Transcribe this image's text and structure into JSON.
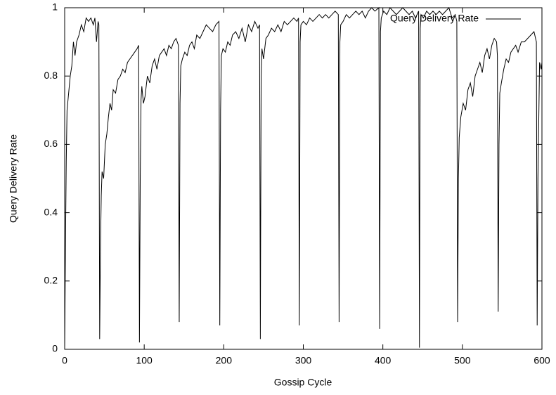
{
  "chart_data": {
    "type": "line",
    "xlabel": "Gossip Cycle",
    "ylabel": "Query Delivery Rate",
    "x": [
      0,
      1,
      2,
      3,
      5,
      7,
      9,
      11,
      13,
      15,
      18,
      21,
      24,
      27,
      30,
      33,
      36,
      38,
      40,
      42,
      43,
      44,
      45,
      46,
      47,
      49,
      51,
      53,
      55,
      57,
      59,
      61,
      64,
      67,
      70,
      73,
      76,
      79,
      82,
      85,
      88,
      91,
      93,
      94,
      95,
      96,
      97,
      99,
      101,
      104,
      107,
      110,
      113,
      116,
      119,
      122,
      125,
      128,
      131,
      134,
      137,
      140,
      143,
      144,
      145,
      146,
      148,
      151,
      154,
      157,
      160,
      163,
      166,
      170,
      174,
      178,
      182,
      186,
      190,
      194,
      195,
      196,
      197,
      199,
      202,
      205,
      208,
      211,
      215,
      219,
      223,
      227,
      231,
      235,
      239,
      243,
      245,
      246,
      247,
      248,
      250,
      253,
      256,
      260,
      264,
      268,
      272,
      276,
      280,
      284,
      288,
      292,
      294,
      295,
      296,
      297,
      300,
      304,
      308,
      312,
      316,
      320,
      324,
      328,
      332,
      336,
      340,
      344,
      345,
      346,
      347,
      350,
      354,
      358,
      362,
      366,
      370,
      374,
      378,
      382,
      386,
      390,
      395,
      396,
      397,
      398,
      401,
      405,
      409,
      413,
      417,
      421,
      425,
      429,
      433,
      437,
      441,
      445,
      446,
      447,
      448,
      451,
      455,
      459,
      463,
      467,
      471,
      475,
      479,
      483,
      487,
      491,
      493,
      494,
      495,
      496,
      498,
      501,
      504,
      507,
      510,
      513,
      516,
      519,
      522,
      525,
      528,
      531,
      534,
      537,
      540,
      543,
      544,
      545,
      546,
      547,
      549,
      552,
      555,
      558,
      561,
      564,
      567,
      570,
      574,
      578,
      582,
      586,
      590,
      593,
      594,
      595,
      597,
      599,
      600
    ],
    "series": [
      {
        "name": "Query Delivery Rate",
        "color": "#000000",
        "values": [
          0,
          0.3,
          0.55,
          0.7,
          0.75,
          0.8,
          0.83,
          0.9,
          0.86,
          0.9,
          0.92,
          0.95,
          0.93,
          0.97,
          0.96,
          0.97,
          0.95,
          0.97,
          0.9,
          0.96,
          0.95,
          0.03,
          0.3,
          0.45,
          0.52,
          0.5,
          0.6,
          0.63,
          0.68,
          0.72,
          0.7,
          0.76,
          0.75,
          0.79,
          0.8,
          0.82,
          0.81,
          0.84,
          0.85,
          0.86,
          0.87,
          0.88,
          0.89,
          0.02,
          0.5,
          0.73,
          0.77,
          0.72,
          0.74,
          0.8,
          0.78,
          0.83,
          0.85,
          0.82,
          0.86,
          0.87,
          0.88,
          0.86,
          0.89,
          0.88,
          0.9,
          0.91,
          0.89,
          0.08,
          0.72,
          0.83,
          0.85,
          0.87,
          0.86,
          0.89,
          0.9,
          0.88,
          0.92,
          0.91,
          0.93,
          0.95,
          0.94,
          0.93,
          0.95,
          0.96,
          0.07,
          0.7,
          0.86,
          0.88,
          0.87,
          0.9,
          0.89,
          0.92,
          0.93,
          0.91,
          0.94,
          0.9,
          0.95,
          0.93,
          0.96,
          0.94,
          0.95,
          0.03,
          0.8,
          0.88,
          0.85,
          0.91,
          0.92,
          0.94,
          0.93,
          0.95,
          0.93,
          0.96,
          0.95,
          0.96,
          0.97,
          0.96,
          0.97,
          0.07,
          0.9,
          0.95,
          0.96,
          0.95,
          0.97,
          0.96,
          0.97,
          0.98,
          0.97,
          0.98,
          0.97,
          0.98,
          0.99,
          0.98,
          0.08,
          0.9,
          0.95,
          0.96,
          0.98,
          0.97,
          0.98,
          0.99,
          0.98,
          0.99,
          0.97,
          0.99,
          1,
          0.99,
          1,
          0.06,
          0.93,
          0.97,
          0.99,
          0.98,
          1,
          0.99,
          0.98,
          0.99,
          1,
          0.99,
          0.98,
          0.99,
          0.97,
          0.99,
          0.005,
          0.94,
          0.98,
          0.97,
          0.99,
          0.98,
          0.99,
          0.98,
          0.99,
          0.98,
          0.99,
          1,
          0.97,
          0.98,
          0.96,
          0.08,
          0.5,
          0.62,
          0.68,
          0.72,
          0.7,
          0.76,
          0.78,
          0.74,
          0.8,
          0.82,
          0.84,
          0.81,
          0.86,
          0.88,
          0.85,
          0.89,
          0.91,
          0.9,
          0.86,
          0.11,
          0.6,
          0.75,
          0.78,
          0.82,
          0.85,
          0.84,
          0.87,
          0.88,
          0.89,
          0.87,
          0.9,
          0.9,
          0.91,
          0.92,
          0.93,
          0.9,
          0.07,
          0.5,
          0.84,
          0.82,
          0.84
        ]
      }
    ],
    "xlim": [
      0,
      600
    ],
    "xticks": [
      0,
      100,
      200,
      300,
      400,
      500,
      600
    ],
    "ylim": [
      0,
      1
    ],
    "yticks": [
      0,
      0.2,
      0.4,
      0.6,
      0.8,
      1
    ],
    "legend": "top-right"
  }
}
